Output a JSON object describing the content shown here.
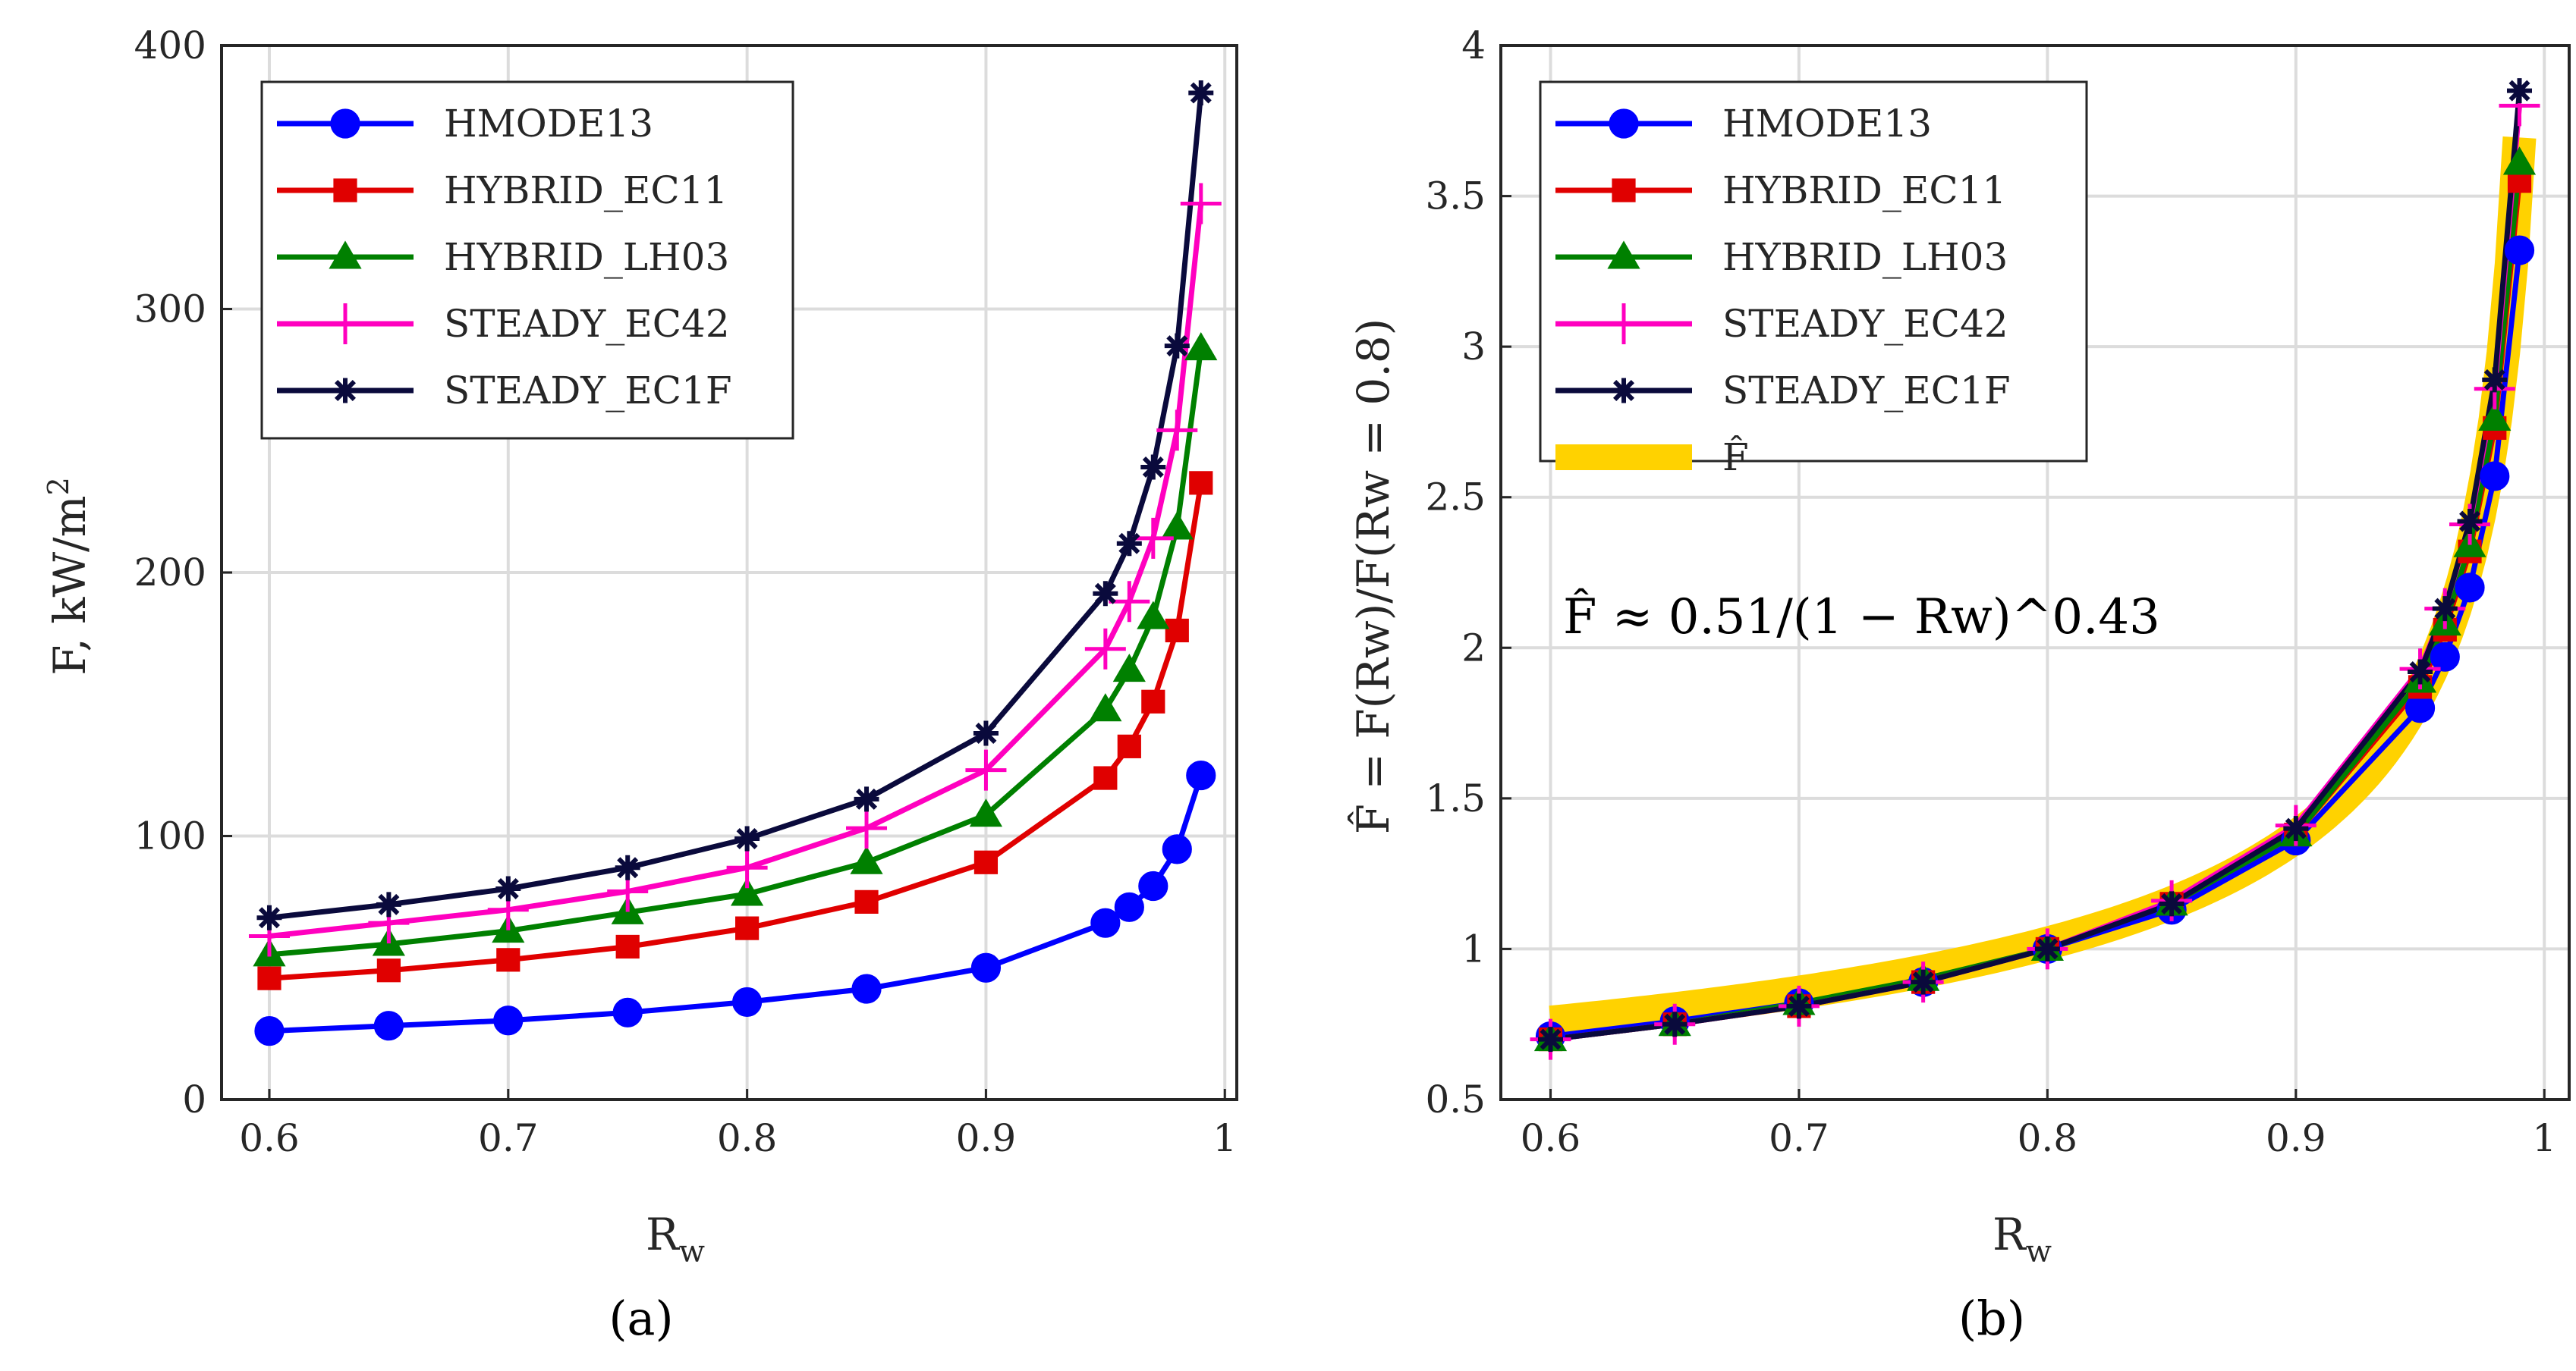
{
  "charts": [
    {
      "panel_label": "(a)",
      "chart_data": {
        "type": "line",
        "title": "",
        "xlabel": "R",
        "xlabel_sub": "w",
        "ylabel": "F, kW/m",
        "ylabel_sup": "2",
        "xlim": [
          0.58,
          1.005
        ],
        "ylim": [
          0,
          400
        ],
        "xticks": [
          0.6,
          0.7,
          0.8,
          0.9,
          1
        ],
        "xtick_labels": [
          "0.6",
          "0.7",
          "0.8",
          "0.9",
          "1"
        ],
        "yticks": [
          0,
          100,
          200,
          300,
          400
        ],
        "ytick_labels": [
          "0",
          "100",
          "200",
          "300",
          "400"
        ],
        "grid": true,
        "legend_position": "top-left",
        "x": [
          0.6,
          0.65,
          0.7,
          0.75,
          0.8,
          0.85,
          0.9,
          0.95,
          0.96,
          0.97,
          0.98,
          0.99
        ],
        "series": [
          {
            "name": "HMODE13",
            "color": "#0000ff",
            "marker": "circle",
            "values": [
              26,
              28,
              30,
              33,
              37,
              42,
              50,
              67,
              73,
              81,
              95,
              123
            ]
          },
          {
            "name": "HYBRID_EC11",
            "color": "#e00000",
            "marker": "square",
            "values": [
              46,
              49,
              53,
              58,
              65,
              75,
              90,
              122,
              134,
              151,
              178,
              234
            ]
          },
          {
            "name": "HYBRID_LH03",
            "color": "#008000",
            "marker": "triangle",
            "values": [
              55,
              59,
              64,
              71,
              78,
              90,
              108,
              148,
              163,
              183,
              217,
              285
            ]
          },
          {
            "name": "STEADY_EC42",
            "color": "#ff00bf",
            "marker": "plus",
            "values": [
              62,
              67,
              72,
              79,
              88,
              103,
              125,
              171,
              189,
              213,
              254,
              340
            ]
          },
          {
            "name": "STEADY_EC1F",
            "color": "#0a0a3c",
            "marker": "asterisk",
            "values": [
              69,
              74,
              80,
              88,
              99,
              114,
              139,
              192,
              211,
              240,
              286,
              382
            ]
          }
        ]
      }
    },
    {
      "panel_label": "(b)",
      "chart_data": {
        "type": "line",
        "title": "",
        "xlabel": "R",
        "xlabel_sub": "w",
        "ylabel": "F̂ = F(Rw)/F(Rw = 0.8)",
        "xlim": [
          0.58,
          1.01
        ],
        "ylim": [
          0.5,
          4
        ],
        "xticks": [
          0.6,
          0.7,
          0.8,
          0.9,
          1
        ],
        "xtick_labels": [
          "0.6",
          "0.7",
          "0.8",
          "0.9",
          "1"
        ],
        "yticks": [
          0.5,
          1,
          1.5,
          2,
          2.5,
          3,
          3.5,
          4
        ],
        "ytick_labels": [
          "0.5",
          "1",
          "1.5",
          "2",
          "2.5",
          "3",
          "3.5",
          "4"
        ],
        "grid": true,
        "legend_position": "top-left",
        "annotation": "F̂ ≈ 0.51/(1 − Rw)^0.43",
        "fit": {
          "name": "F̂",
          "color": "#ffd200",
          "coef": 0.51,
          "exponent": 0.43,
          "x_range": [
            0.6,
            0.99
          ]
        },
        "x": [
          0.6,
          0.65,
          0.7,
          0.75,
          0.8,
          0.85,
          0.9,
          0.95,
          0.96,
          0.97,
          0.98,
          0.99
        ],
        "series": [
          {
            "name": "HMODE13",
            "color": "#0000ff",
            "marker": "circle",
            "values": [
              0.71,
              0.76,
              0.82,
              0.89,
              1.0,
              1.13,
              1.36,
              1.8,
              1.97,
              2.2,
              2.57,
              3.32
            ]
          },
          {
            "name": "HYBRID_EC11",
            "color": "#e00000",
            "marker": "square",
            "values": [
              0.7,
              0.75,
              0.81,
              0.89,
              1.0,
              1.15,
              1.38,
              1.87,
              2.06,
              2.32,
              2.73,
              3.55
            ]
          },
          {
            "name": "HYBRID_LH03",
            "color": "#008000",
            "marker": "triangle",
            "values": [
              0.7,
              0.75,
              0.82,
              0.9,
              1.0,
              1.15,
              1.38,
              1.89,
              2.08,
              2.34,
              2.76,
              3.61
            ]
          },
          {
            "name": "STEADY_EC42",
            "color": "#ff00bf",
            "marker": "plus",
            "values": [
              0.7,
              0.75,
              0.81,
              0.89,
              1.0,
              1.16,
              1.41,
              1.93,
              2.13,
              2.41,
              2.86,
              3.8
            ]
          },
          {
            "name": "STEADY_EC1F",
            "color": "#0a0a3c",
            "marker": "asterisk",
            "values": [
              0.7,
              0.75,
              0.81,
              0.89,
              1.0,
              1.15,
              1.4,
              1.92,
              2.13,
              2.42,
              2.89,
              3.85
            ]
          }
        ]
      }
    }
  ]
}
